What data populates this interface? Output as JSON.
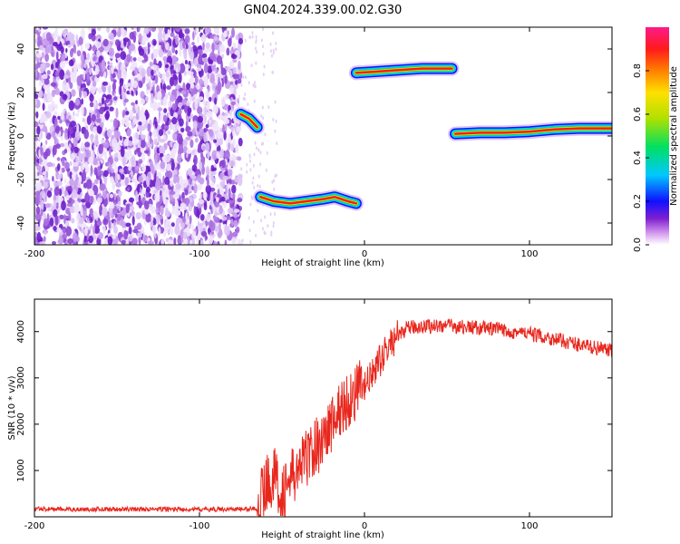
{
  "figure": {
    "title": "GN04.2024.339.00.02.G30"
  },
  "chart_data": [
    {
      "type": "heatmap",
      "xlabel": "Height of straight line (km)",
      "ylabel": "Frequency (Hz)",
      "xlim": [
        -200,
        150
      ],
      "ylim": [
        -50,
        50
      ],
      "xticks": [
        -200,
        -100,
        0,
        100
      ],
      "yticks": [
        -40,
        -20,
        0,
        20,
        40
      ],
      "noise_region": {
        "x_from": -200,
        "x_to": -75,
        "color": "purple"
      },
      "tracks": [
        {
          "x": [
            -75,
            -70,
            -65
          ],
          "y": [
            10,
            8,
            4
          ]
        },
        {
          "x": [
            -63,
            -55,
            -45,
            -35,
            -25,
            -18,
            -10,
            -5
          ],
          "y": [
            -28,
            -30,
            -31,
            -30,
            -29,
            -28,
            -30,
            -31
          ]
        },
        {
          "x": [
            -5,
            5,
            15,
            25,
            35,
            45,
            53
          ],
          "y": [
            29,
            29.5,
            30,
            30.5,
            31,
            31,
            31
          ]
        },
        {
          "x": [
            55,
            70,
            85,
            100,
            115,
            130,
            150
          ],
          "y": [
            1,
            1.5,
            1.5,
            2,
            3,
            3.5,
            3.5
          ]
        }
      ],
      "colorbar": {
        "label": "Normalized spectral amplitude",
        "range": [
          0,
          1
        ],
        "ticks": [
          0.0,
          0.2,
          0.4,
          0.6,
          0.8
        ],
        "colors": [
          "#ffffff",
          "#d8a0f0",
          "#8020d0",
          "#1010ff",
          "#00c8ff",
          "#00e060",
          "#b0e000",
          "#ffe000",
          "#ff8000",
          "#ff1a1a",
          "#ff1a8a"
        ]
      }
    },
    {
      "type": "line",
      "xlabel": "Height of straight line (km)",
      "ylabel": "SNR (10 * v/v)",
      "xlim": [
        -200,
        150
      ],
      "ylim": [
        0,
        4700
      ],
      "xticks": [
        -200,
        -100,
        0,
        100
      ],
      "yticks": [
        1000,
        2000,
        3000,
        4000
      ],
      "series": [
        {
          "color": "#e8261c",
          "x": [
            -200,
            -180,
            -160,
            -140,
            -120,
            -100,
            -80,
            -70,
            -65,
            -60,
            -55,
            -50,
            -45,
            -40,
            -35,
            -30,
            -25,
            -20,
            -15,
            -10,
            -5,
            0,
            5,
            10,
            15,
            20,
            25,
            30,
            40,
            50,
            60,
            70,
            80,
            90,
            100,
            110,
            120,
            130,
            140,
            150
          ],
          "y": [
            170,
            160,
            165,
            160,
            165,
            160,
            165,
            170,
            180,
            700,
            900,
            500,
            800,
            1000,
            1300,
            1500,
            1700,
            2000,
            2300,
            2500,
            2700,
            2800,
            3100,
            3400,
            3700,
            3900,
            4050,
            4100,
            4120,
            4130,
            4100,
            4080,
            4050,
            4000,
            3950,
            3880,
            3800,
            3720,
            3650,
            3580
          ]
        }
      ]
    }
  ]
}
